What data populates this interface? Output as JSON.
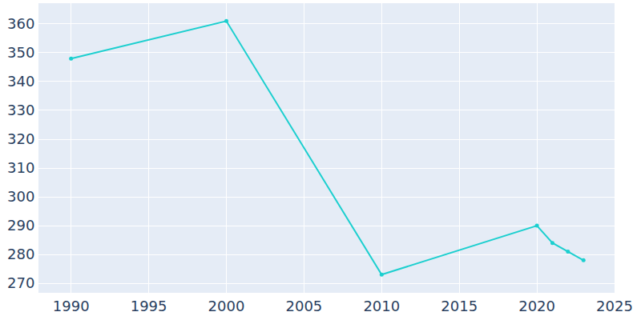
{
  "chart_data": {
    "type": "line",
    "x": [
      1990,
      2000,
      2010,
      2020,
      2021,
      2022,
      2023
    ],
    "values": [
      348,
      361,
      273,
      290,
      284,
      281,
      278
    ],
    "color": "#1ccfcf",
    "marker": "circle",
    "xlim": [
      1987.9,
      2025
    ],
    "ylim": [
      266.7,
      367.2
    ],
    "xticks": [
      1990,
      1995,
      2000,
      2005,
      2010,
      2015,
      2020,
      2025
    ],
    "yticks": [
      270,
      280,
      290,
      300,
      310,
      320,
      330,
      340,
      350,
      360
    ],
    "grid": true
  }
}
